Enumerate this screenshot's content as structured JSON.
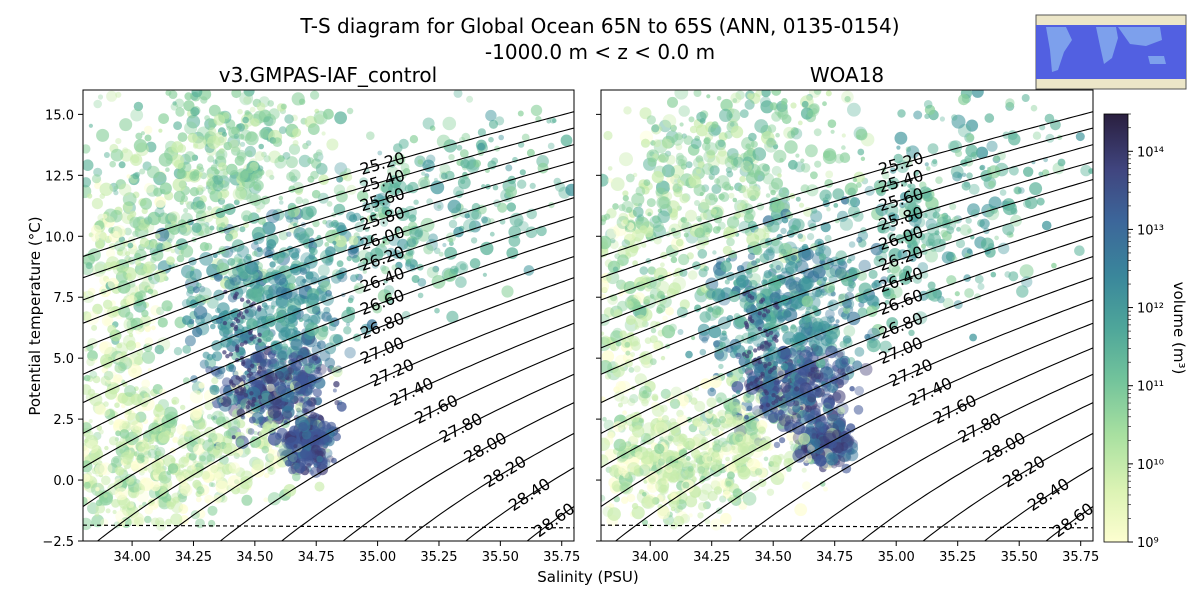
{
  "figure": {
    "title_line1": "T-S diagram for Global Ocean 65N to 65S (ANN, 0135-0154)",
    "title_line2": "-1000.0 m < z < 0.0 m",
    "xlabel": "Salinity (PSU)",
    "ylabel": "Potential temperature (°C)",
    "colorbar_label": "volume (m³)",
    "colorbar_ticks": [
      "10⁹",
      "10¹⁰",
      "10¹¹",
      "10¹²",
      "10¹³",
      "10¹⁴"
    ],
    "map_inset": "region map"
  },
  "chart_data": [
    {
      "type": "heatmap",
      "title": "v3.GMPAS-IAF_control",
      "xlabel": "Salinity (PSU)",
      "ylabel": "Potential temperature (°C)",
      "xlim": [
        33.8,
        35.8
      ],
      "ylim": [
        -2.5,
        16.0
      ],
      "xticks": [
        34.0,
        34.25,
        34.5,
        34.75,
        35.0,
        35.25,
        35.5,
        35.75
      ],
      "xtick_labels": [
        "34.00",
        "34.25",
        "34.50",
        "34.75",
        "35.00",
        "35.25",
        "35.50",
        "35.75"
      ],
      "yticks": [
        -2.5,
        0.0,
        2.5,
        5.0,
        7.5,
        10.0,
        12.5,
        15.0
      ],
      "ytick_labels": [
        "−2.5",
        "0.0",
        "2.5",
        "5.0",
        "7.5",
        "10.0",
        "12.5",
        "15.0"
      ],
      "freezing_line": {
        "s": [
          33.8,
          35.8
        ],
        "t": [
          -1.85,
          -1.96
        ]
      },
      "density_contours": [
        "25.20",
        "25.40",
        "25.60",
        "25.80",
        "26.00",
        "26.20",
        "26.40",
        "26.60",
        "26.80",
        "27.00",
        "27.20",
        "27.40",
        "27.60",
        "27.80",
        "28.00",
        "28.20",
        "28.40",
        "28.60"
      ],
      "colormap": "deep (log volume)",
      "color_range": [
        1000000000.0,
        300000000000000.0
      ]
    },
    {
      "type": "heatmap",
      "title": "WOA18",
      "xlabel": "Salinity (PSU)",
      "ylabel": "",
      "xlim": [
        33.8,
        35.8
      ],
      "ylim": [
        -2.5,
        16.0
      ],
      "xticks": [
        34.0,
        34.25,
        34.5,
        34.75,
        35.0,
        35.25,
        35.5,
        35.75
      ],
      "xtick_labels": [
        "34.00",
        "34.25",
        "34.50",
        "34.75",
        "35.00",
        "35.25",
        "35.50",
        "35.75"
      ],
      "yticks": [
        -2.5,
        0.0,
        2.5,
        5.0,
        7.5,
        10.0,
        12.5,
        15.0
      ],
      "ytick_labels": [],
      "freezing_line": {
        "s": [
          33.8,
          35.8
        ],
        "t": [
          -1.85,
          -1.96
        ]
      },
      "density_contours": [
        "25.20",
        "25.40",
        "25.60",
        "25.80",
        "26.00",
        "26.20",
        "26.40",
        "26.60",
        "26.80",
        "27.00",
        "27.20",
        "27.40",
        "27.60",
        "27.80",
        "28.00",
        "28.20",
        "28.40",
        "28.60"
      ],
      "colormap": "deep (log volume)",
      "color_range": [
        1000000000.0,
        300000000000000.0
      ]
    }
  ],
  "colors": {
    "cmap": [
      "#fdfed0",
      "#c8ecab",
      "#89d09b",
      "#5cb39a",
      "#3e959b",
      "#37769a",
      "#3f5595",
      "#3d3a73",
      "#2a2242"
    ],
    "map_ocean": "#4a59e3",
    "map_land": "#ece6c8",
    "map_band": "#7da0ec"
  }
}
